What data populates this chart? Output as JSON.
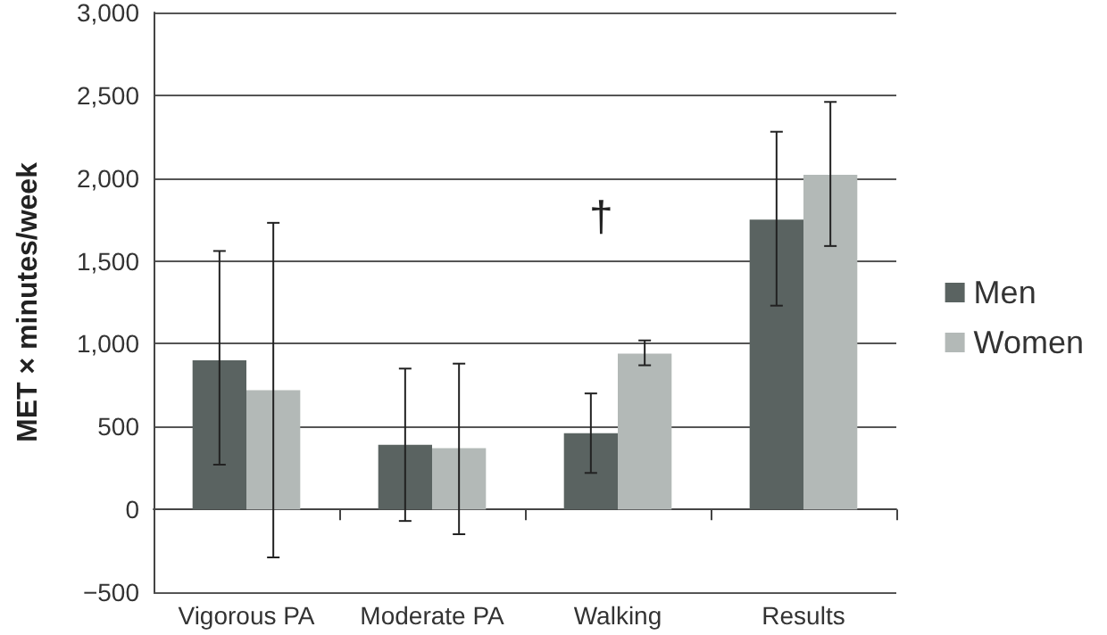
{
  "chart_data": {
    "type": "bar",
    "ylabel": "MET × minutes/week",
    "categories": [
      "Vigorous PA",
      "Moderate PA",
      "Walking",
      "Results"
    ],
    "series": [
      {
        "name": "Men",
        "color": "#5a6361",
        "values": [
          900,
          390,
          460,
          1750
        ],
        "errors": [
          [
            270,
            1560
          ],
          [
            -70,
            850
          ],
          [
            220,
            700
          ],
          [
            1230,
            2280
          ]
        ]
      },
      {
        "name": "Women",
        "color": "#b3b9b7",
        "values": [
          720,
          370,
          940,
          2020
        ],
        "errors": [
          [
            -290,
            1730
          ],
          [
            -150,
            880
          ],
          [
            870,
            1020
          ],
          [
            1590,
            2460
          ]
        ]
      }
    ],
    "ylim": [
      -500,
      3000
    ],
    "yticks": [
      {
        "value": -500,
        "label": "−500"
      },
      0,
      500,
      {
        "value": 1000,
        "label": "1,000"
      },
      {
        "value": 1500,
        "label": "1,500"
      },
      {
        "value": 2000,
        "label": "2,000"
      },
      {
        "value": 2500,
        "label": "2,500"
      },
      {
        "value": 3000,
        "label": "3,000"
      }
    ],
    "annotations": [
      "†"
    ],
    "grid": "y",
    "legend": "right"
  }
}
